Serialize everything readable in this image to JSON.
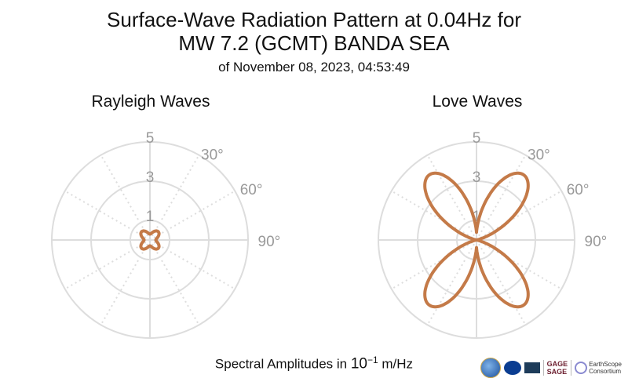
{
  "header": {
    "title_line1": "Surface-Wave Radiation Pattern at 0.04Hz for",
    "title_line2": "MW 7.2 (GCMT) BANDA SEA",
    "subtitle": "of November 08, 2023, 04:53:49"
  },
  "footer": {
    "label_prefix": "Spectral Amplitudes in ",
    "label_base": "10",
    "label_exp": "−1",
    "label_unit": " m/Hz"
  },
  "logos": {
    "gage": "GAGE",
    "sage": "SAGE",
    "earthscope": "EarthScope",
    "consortium": "Consortium"
  },
  "colors": {
    "pattern": "#c47a48",
    "grid": "#dddddd",
    "tick_text": "#999999"
  },
  "chart_data": [
    {
      "type": "polar",
      "title": "Rayleigh Waves",
      "radial_ticks": [
        "1",
        "3",
        "5"
      ],
      "radial_max": 5,
      "angle_labels": [
        "30°",
        "60°",
        "90°"
      ],
      "grid": true,
      "series": [
        {
          "pattern": "four-lobed",
          "lobe_peak_amplitude": 0.6,
          "lobe_peak_azimuths_deg": [
            45,
            135,
            225,
            315
          ],
          "minimum_amplitude": 0.3
        }
      ]
    },
    {
      "type": "polar",
      "title": "Love Waves",
      "radial_ticks": [
        "1",
        "3",
        "5"
      ],
      "radial_max": 5,
      "angle_labels": [
        "30°",
        "60°",
        "90°"
      ],
      "grid": true,
      "series": [
        {
          "pattern": "four-lobed",
          "lobe_peak_amplitude": 4.1,
          "lobe_peak_azimuths_deg": [
            36,
            144,
            216,
            324
          ],
          "minimum_amplitude": 0.0
        }
      ]
    }
  ]
}
